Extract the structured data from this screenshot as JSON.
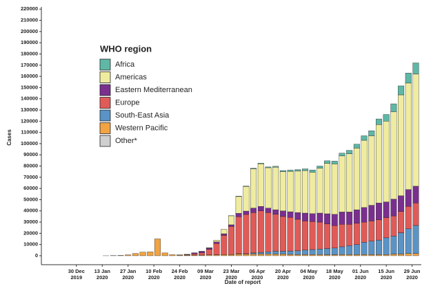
{
  "chart_data": {
    "type": "stacked-bar",
    "x_label": "Date of report",
    "y_label": "Cases",
    "legend_title": "WHO region",
    "legend": "upper-left",
    "x": [
      "2020-01-03",
      "2020-01-07",
      "2020-01-11",
      "2020-01-15",
      "2020-01-19",
      "2020-01-23",
      "2020-01-27",
      "2020-01-31",
      "2020-02-04",
      "2020-02-08",
      "2020-02-12",
      "2020-02-16",
      "2020-02-20",
      "2020-02-24",
      "2020-02-28",
      "2020-03-03",
      "2020-03-07",
      "2020-03-11",
      "2020-03-15",
      "2020-03-19",
      "2020-03-23",
      "2020-03-27",
      "2020-03-31",
      "2020-04-04",
      "2020-04-08",
      "2020-04-12",
      "2020-04-16",
      "2020-04-20",
      "2020-04-24",
      "2020-04-28",
      "2020-05-02",
      "2020-05-06",
      "2020-05-10",
      "2020-05-14",
      "2020-05-18",
      "2020-05-22",
      "2020-05-26",
      "2020-05-30",
      "2020-06-03",
      "2020-06-07",
      "2020-06-11",
      "2020-06-15",
      "2020-06-19",
      "2020-06-23",
      "2020-06-27",
      "2020-07-01"
    ],
    "series": [
      {
        "name": "Africa",
        "color": "#5fb8a6",
        "values": [
          0,
          0,
          0,
          0,
          0,
          0,
          0,
          0,
          0,
          0,
          0,
          0,
          0,
          0,
          0,
          0,
          0,
          0,
          0,
          0,
          100,
          300,
          400,
          500,
          600,
          700,
          800,
          1000,
          1200,
          1300,
          1500,
          2000,
          2000,
          2300,
          2500,
          2500,
          3000,
          3500,
          4000,
          4500,
          5000,
          6000,
          7000,
          8000,
          9000,
          10000
        ]
      },
      {
        "name": "Americas",
        "color": "#efeca0",
        "values": [
          0,
          0,
          0,
          0,
          0,
          0,
          0,
          0,
          0,
          0,
          0,
          0,
          0,
          0,
          10,
          30,
          100,
          400,
          1500,
          4000,
          8000,
          15000,
          22000,
          35000,
          38000,
          36000,
          38000,
          35000,
          36000,
          37000,
          38000,
          37000,
          40000,
          45000,
          45000,
          50000,
          52000,
          55000,
          60000,
          62000,
          70000,
          72000,
          78000,
          90000,
          95000,
          100000
        ]
      },
      {
        "name": "Eastern Mediterranean",
        "color": "#7a2f8e",
        "values": [
          0,
          0,
          0,
          0,
          0,
          0,
          0,
          0,
          0,
          0,
          0,
          0,
          0,
          50,
          200,
          800,
          1300,
          1100,
          1500,
          1500,
          1500,
          3000,
          3000,
          4000,
          4000,
          4000,
          4000,
          5000,
          5000,
          6000,
          7000,
          7000,
          8000,
          9000,
          10000,
          11000,
          11000,
          12000,
          13000,
          14000,
          15000,
          14000,
          15000,
          14000,
          15000,
          15000
        ]
      },
      {
        "name": "Europe",
        "color": "#e05b58",
        "values": [
          0,
          0,
          0,
          0,
          0,
          0,
          0,
          0,
          0,
          0,
          0,
          0,
          0,
          100,
          400,
          1200,
          2000,
          5000,
          10000,
          17000,
          25000,
          33000,
          35000,
          36000,
          37000,
          35000,
          33000,
          31000,
          30000,
          28000,
          26000,
          25000,
          24000,
          22000,
          20000,
          20000,
          19000,
          19000,
          18000,
          18000,
          18000,
          18000,
          18000,
          19000,
          20000,
          20000
        ]
      },
      {
        "name": "South-East Asia",
        "color": "#5a93c6",
        "values": [
          0,
          0,
          0,
          0,
          0,
          0,
          0,
          0,
          0,
          0,
          0,
          0,
          0,
          0,
          0,
          0,
          0,
          0,
          50,
          100,
          100,
          300,
          300,
          1000,
          1500,
          2000,
          2500,
          2500,
          3000,
          3500,
          4000,
          4500,
          5000,
          5500,
          6000,
          7000,
          8000,
          9000,
          11000,
          12000,
          13000,
          15000,
          16000,
          19000,
          22000,
          25000
        ]
      },
      {
        "name": "Western Pacific",
        "color": "#f2a443",
        "values": [
          0,
          0,
          0,
          10,
          100,
          300,
          800,
          2000,
          3200,
          3400,
          15000,
          2500,
          900,
          600,
          600,
          600,
          600,
          700,
          800,
          1000,
          1000,
          1500,
          1500,
          1500,
          1500,
          1500,
          1500,
          1500,
          1200,
          1000,
          1000,
          1000,
          1000,
          900,
          900,
          1000,
          1000,
          1000,
          1000,
          1000,
          1000,
          1000,
          1500,
          1500,
          2000,
          2000
        ]
      },
      {
        "name": "Other*",
        "color": "#cfcfcf",
        "values": [
          0,
          0,
          0,
          0,
          0,
          0,
          0,
          0,
          0,
          0,
          0,
          0,
          0,
          0,
          0,
          0,
          0,
          0,
          0,
          0,
          0,
          0,
          0,
          0,
          0,
          0,
          0,
          0,
          0,
          0,
          0,
          0,
          0,
          0,
          0,
          0,
          0,
          0,
          0,
          0,
          0,
          0,
          0,
          0,
          0,
          0
        ]
      }
    ],
    "xlim": [
      "2019-12-11",
      "2020-07-04"
    ],
    "xticks": [
      {
        "value": "2019-12-30",
        "label": [
          "30 Dec",
          "2019"
        ]
      },
      {
        "value": "2020-01-13",
        "label": [
          "13 Jan",
          "2020"
        ]
      },
      {
        "value": "2020-01-27",
        "label": [
          "27 Jan",
          "2020"
        ]
      },
      {
        "value": "2020-02-10",
        "label": [
          "10 Feb",
          "2020"
        ]
      },
      {
        "value": "2020-02-24",
        "label": [
          "24 Feb",
          "2020"
        ]
      },
      {
        "value": "2020-03-09",
        "label": [
          "09 Mar",
          "2020"
        ]
      },
      {
        "value": "2020-03-23",
        "label": [
          "23 Mar",
          "2020"
        ]
      },
      {
        "value": "2020-04-06",
        "label": [
          "06 Apr",
          "2020"
        ]
      },
      {
        "value": "2020-04-20",
        "label": [
          "20 Apr",
          "2020"
        ]
      },
      {
        "value": "2020-05-04",
        "label": [
          "04 May",
          "2020"
        ]
      },
      {
        "value": "2020-05-18",
        "label": [
          "18 May",
          "2020"
        ]
      },
      {
        "value": "2020-06-01",
        "label": [
          "01 Jun",
          "2020"
        ]
      },
      {
        "value": "2020-06-15",
        "label": [
          "15 Jun",
          "2020"
        ]
      },
      {
        "value": "2020-06-29",
        "label": [
          "29 Jun",
          "2020"
        ]
      }
    ],
    "ylim": [
      -8000,
      222000
    ],
    "yticks": [
      0,
      10000,
      20000,
      30000,
      40000,
      50000,
      60000,
      70000,
      80000,
      90000,
      100000,
      110000,
      120000,
      130000,
      140000,
      150000,
      160000,
      170000,
      180000,
      190000,
      200000,
      210000,
      220000
    ]
  }
}
